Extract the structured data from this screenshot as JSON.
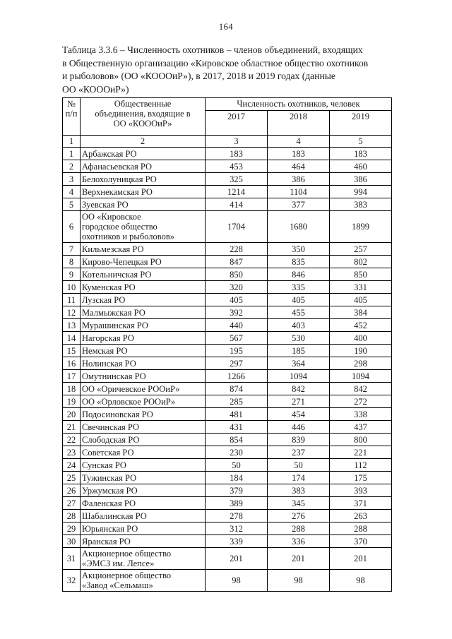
{
  "page_number": "164",
  "caption": {
    "lines": [
      "Таблица 3.3.6 – Численность охотников – членов объединений, входящих",
      "в Общественную организацию «Кировское областное общество охотников",
      "и рыболовов» (ОО «КОООиР»), в 2017, 2018 и 2019 годах (данные",
      "ОО «КОООиР»)"
    ]
  },
  "table": {
    "header": {
      "num_col": "№\nп/п",
      "name_col": "Общественные\nобъединения, входящие в\nОО «КОООиР»",
      "group": "Численность охотников, человек",
      "years": [
        "2017",
        "2018",
        "2019"
      ]
    },
    "index_row": [
      "1",
      "2",
      "3",
      "4",
      "5"
    ],
    "rows": [
      [
        "1",
        "Арбажская РО",
        "183",
        "183",
        "183"
      ],
      [
        "2",
        "Афанасьевская РО",
        "453",
        "464",
        "460"
      ],
      [
        "3",
        "Белохолуницкая РО",
        "325",
        "386",
        "386"
      ],
      [
        "4",
        "Верхнекамская РО",
        "1214",
        "1104",
        "994"
      ],
      [
        "5",
        "Зуевская РО",
        "414",
        "377",
        "383"
      ],
      [
        "6",
        "ОО «Кировское\nгородское общество\nохотников и рыболовов»",
        "1704",
        "1680",
        "1899"
      ],
      [
        "7",
        "Кильмезская РО",
        "228",
        "350",
        "257"
      ],
      [
        "8",
        "Кирово-Чепецкая РО",
        "847",
        "835",
        "802"
      ],
      [
        "9",
        "Котельничская РО",
        "850",
        "846",
        "850"
      ],
      [
        "10",
        "Куменская РО",
        "320",
        "335",
        "331"
      ],
      [
        "11",
        "Лузская РО",
        "405",
        "405",
        "405"
      ],
      [
        "12",
        "Малмыжская РО",
        "392",
        "455",
        "384"
      ],
      [
        "13",
        "Мурашинская РО",
        "440",
        "403",
        "452"
      ],
      [
        "14",
        "Нагорская РО",
        "567",
        "530",
        "400"
      ],
      [
        "15",
        "Немская РО",
        "195",
        "185",
        "190"
      ],
      [
        "16",
        "Нолинская РО",
        "297",
        "364",
        "298"
      ],
      [
        "17",
        "Омутнинская РО",
        "1266",
        "1094",
        "1094"
      ],
      [
        "18",
        "ОО «Оричевское РООиР»",
        "874",
        "842",
        "842"
      ],
      [
        "19",
        "ОО «Орловское РООиР»",
        "285",
        "271",
        "272"
      ],
      [
        "20",
        "Подосиновская РО",
        "481",
        "454",
        "338"
      ],
      [
        "21",
        "Свечинская РО",
        "431",
        "446",
        "437"
      ],
      [
        "22",
        "Слободская РО",
        "854",
        "839",
        "800"
      ],
      [
        "23",
        "Советская РО",
        "230",
        "237",
        "221"
      ],
      [
        "24",
        "Сунская РО",
        "50",
        "50",
        "112"
      ],
      [
        "25",
        "Тужинская РО",
        "184",
        "174",
        "175"
      ],
      [
        "26",
        "Уржумская РО",
        "379",
        "383",
        "393"
      ],
      [
        "27",
        "Фаленская РО",
        "389",
        "345",
        "371"
      ],
      [
        "28",
        "Шабалинская РО",
        "278",
        "276",
        "263"
      ],
      [
        "29",
        "Юрьянская РО",
        "312",
        "288",
        "288"
      ],
      [
        "30",
        "Яранская РО",
        "339",
        "336",
        "370"
      ],
      [
        "31",
        "Акционерное общество\n«ЭМСЗ им. Лепсе»",
        "201",
        "201",
        "201"
      ],
      [
        "32",
        "Акционерное общество\n«Завод «Сельмаш»",
        "98",
        "98",
        "98"
      ]
    ]
  }
}
